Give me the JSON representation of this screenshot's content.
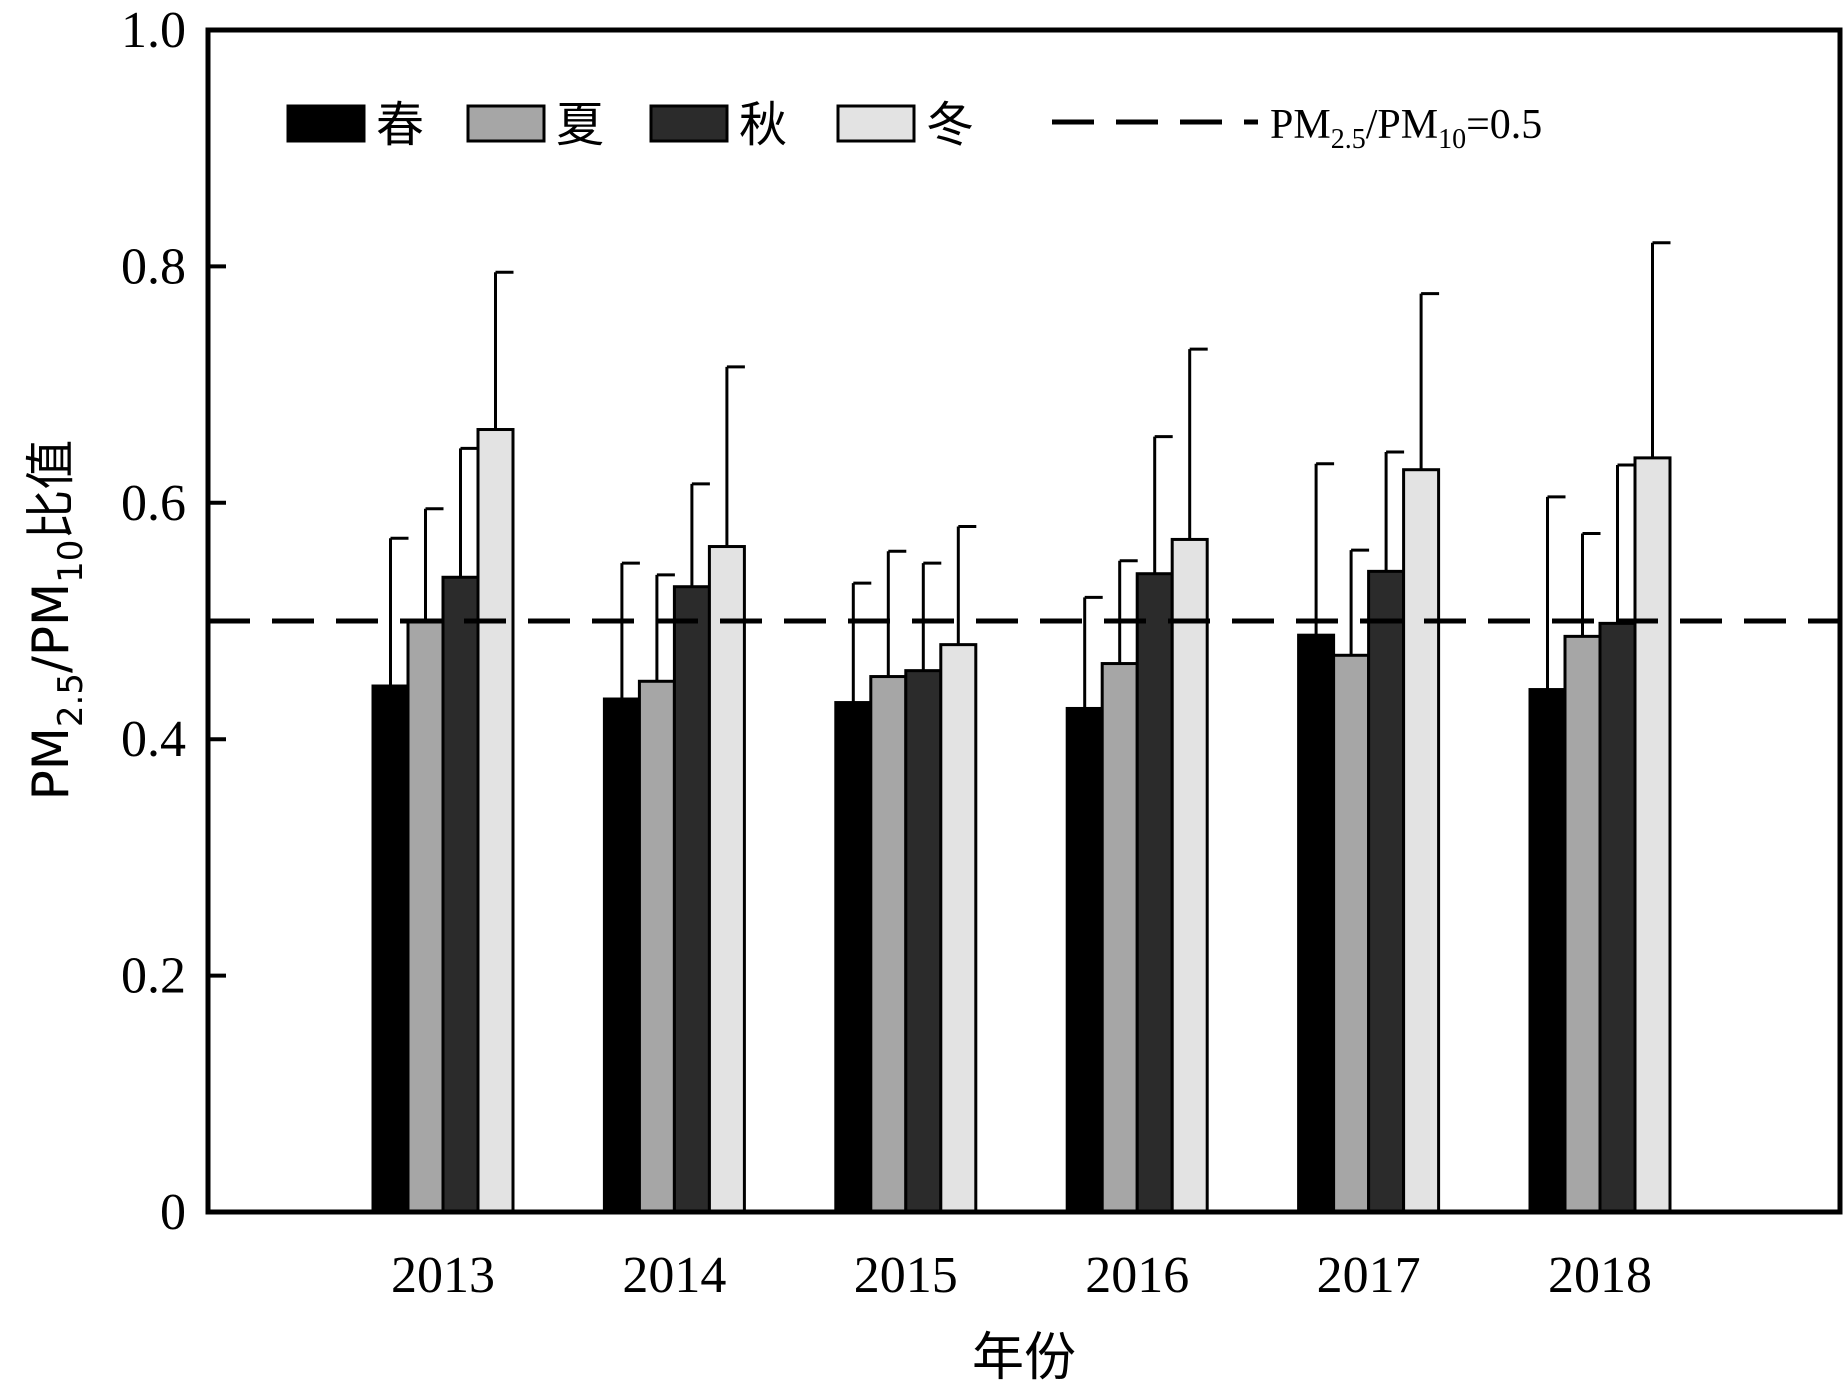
{
  "chart_data": {
    "type": "bar",
    "xlabel": "年份",
    "ylabel": {
      "parts": [
        {
          "text": "PM",
          "sub": false
        },
        {
          "text": "2.5",
          "sub": true
        },
        {
          "text": "/PM",
          "sub": false
        },
        {
          "text": "10",
          "sub": true
        },
        {
          "text": "比值",
          "sub": false
        }
      ]
    },
    "ylim": [
      0,
      1.0
    ],
    "yticks": [
      {
        "value": 0,
        "label": "0"
      },
      {
        "value": 0.2,
        "label": "0.2"
      },
      {
        "value": 0.4,
        "label": "0.4"
      },
      {
        "value": 0.6,
        "label": "0.6"
      },
      {
        "value": 0.8,
        "label": "0.8"
      },
      {
        "value": 1.0,
        "label": "1.0"
      }
    ],
    "categories": [
      "2013",
      "2014",
      "2015",
      "2016",
      "2017",
      "2018"
    ],
    "series": [
      {
        "name": "春",
        "color": "#000000",
        "values": [
          0.445,
          0.434,
          0.431,
          0.426,
          0.488,
          0.442
        ],
        "errors": [
          0.125,
          0.115,
          0.101,
          0.094,
          0.145,
          0.163
        ]
      },
      {
        "name": "夏",
        "color": "#a6a6a6",
        "values": [
          0.5,
          0.449,
          0.453,
          0.464,
          0.471,
          0.487
        ],
        "errors": [
          0.095,
          0.09,
          0.106,
          0.087,
          0.089,
          0.087
        ]
      },
      {
        "name": "秋",
        "color": "#2b2b2b",
        "values": [
          0.537,
          0.529,
          0.458,
          0.54,
          0.542,
          0.498
        ],
        "errors": [
          0.109,
          0.087,
          0.091,
          0.116,
          0.101,
          0.134
        ]
      },
      {
        "name": "冬",
        "color": "#e3e3e3",
        "values": [
          0.662,
          0.563,
          0.48,
          0.569,
          0.628,
          0.638
        ],
        "errors": [
          0.133,
          0.152,
          0.1,
          0.161,
          0.149,
          0.182
        ]
      }
    ],
    "reference_line": {
      "value": 0.5,
      "style": "dashed",
      "label_parts": [
        {
          "text": "PM",
          "sub": false
        },
        {
          "text": "2.5",
          "sub": true
        },
        {
          "text": "/PM",
          "sub": false
        },
        {
          "text": "10",
          "sub": true
        },
        {
          "text": "=0.5",
          "sub": false
        }
      ]
    },
    "legend_position": "top",
    "grid": false
  }
}
